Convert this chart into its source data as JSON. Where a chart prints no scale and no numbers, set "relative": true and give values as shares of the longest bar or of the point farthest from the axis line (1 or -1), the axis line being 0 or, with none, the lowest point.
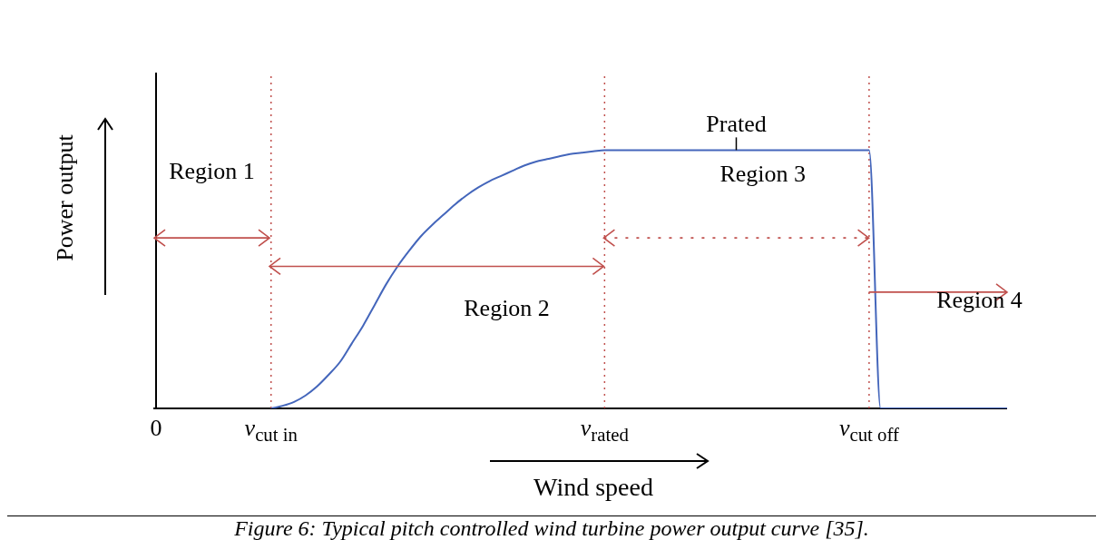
{
  "chart_data": {
    "type": "line",
    "relative": true,
    "xlabel": "Wind speed",
    "ylabel": "Power output",
    "categories": [
      "0",
      null,
      null,
      null,
      null,
      null,
      null,
      null,
      null,
      null,
      "v$_{cut in}$",
      null,
      null,
      null,
      null,
      null,
      null,
      null,
      null,
      null,
      null,
      null,
      null,
      null,
      null,
      null,
      null,
      null,
      null,
      null,
      null,
      null,
      null,
      null,
      null,
      null,
      null,
      null,
      null,
      "v$_{rated}$",
      null,
      null,
      null,
      null,
      null,
      null,
      null,
      null,
      null,
      null,
      null,
      null,
      null,
      null,
      null,
      null,
      null,
      null,
      null,
      null,
      null,
      null,
      "v$_{cut off}$",
      null,
      null,
      null,
      null,
      null,
      null,
      null,
      null,
      null,
      null,
      null,
      null
    ],
    "series": [
      {
        "color": "#4466bb",
        "values": [
          null,
          null,
          null,
          null,
          null,
          null,
          null,
          null,
          null,
          null,
          0,
          0.01,
          0.025,
          0.05,
          0.085,
          0.13,
          0.18,
          0.25,
          0.32,
          0.4,
          0.48,
          0.55,
          0.61,
          0.665,
          0.71,
          0.75,
          0.79,
          0.825,
          0.855,
          0.88,
          0.9,
          0.92,
          0.94,
          0.955,
          0.965,
          0.975,
          0.985,
          0.99,
          0.995,
          1,
          1,
          1,
          1,
          1,
          1,
          1,
          1,
          1,
          1,
          1,
          1,
          1,
          1,
          1,
          1,
          1,
          1,
          1,
          1,
          1,
          1,
          1,
          1,
          0,
          0,
          0,
          0,
          0,
          0,
          0,
          0,
          0,
          0,
          0,
          0
        ]
      }
    ],
    "ref_lines": [
      {
        "axis": "x",
        "value": "v$_{cut in}$",
        "color": "#c0504d",
        "line_style": "dotted"
      },
      {
        "axis": "x",
        "value": "v$_{rated}$",
        "color": "#c0504d",
        "line_style": "dotted"
      },
      {
        "axis": "x",
        "value": "v$_{cut off}$",
        "color": "#c0504d",
        "line_style": "dotted"
      }
    ],
    "tick_labels": "x",
    "grid": false,
    "legend": false,
    "marker": "none",
    "line_style": "solid",
    "annotations": [
      "Region 1",
      "Region 2",
      "Region 3",
      "Region 4",
      {
        "text": "Prated",
        "y": 1
      },
      "Figure 6: Typical pitch controlled wind turbine power output curve [35]."
    ]
  }
}
